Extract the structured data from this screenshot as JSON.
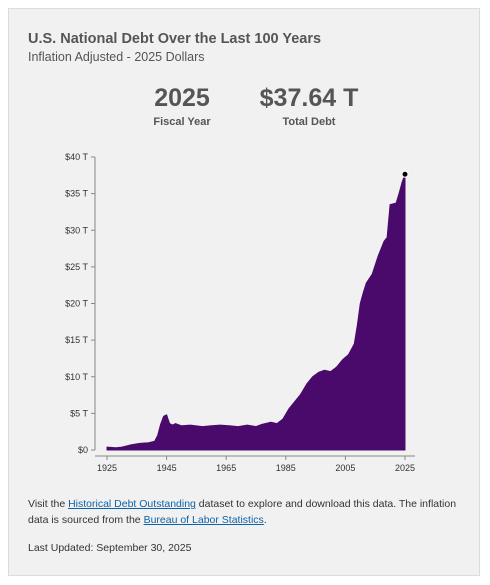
{
  "header": {
    "title": "U.S. National Debt Over the Last 100 Years",
    "subtitle": "Inflation Adjusted - 2025 Dollars"
  },
  "stats": {
    "year_value": "2025",
    "year_label": "Fiscal Year",
    "debt_value": "$37.64 T",
    "debt_label": "Total Debt"
  },
  "colors": {
    "area": "#4a0a6c",
    "marker": "#000000",
    "axis": "#888888"
  },
  "chart_data": {
    "type": "area",
    "title": "U.S. National Debt Over the Last 100 Years",
    "subtitle": "Inflation Adjusted - 2025 Dollars",
    "xlabel": "",
    "ylabel": "",
    "xlim": [
      1925,
      2025
    ],
    "ylim": [
      0,
      40
    ],
    "x_ticks": [
      1925,
      1945,
      1965,
      1985,
      2005,
      2025
    ],
    "x_tick_labels": [
      "1925",
      "1945",
      "1965",
      "1985",
      "2005",
      "2025"
    ],
    "y_ticks": [
      0,
      5,
      10,
      15,
      20,
      25,
      30,
      35,
      40
    ],
    "y_tick_labels": [
      "$0",
      "$5 T",
      "$10 T",
      "$15 T",
      "$20 T",
      "$25 T",
      "$30 T",
      "$35 T",
      "$40 T"
    ],
    "grid": false,
    "series": [
      {
        "x": [
          1925,
          1928,
          1930,
          1933,
          1936,
          1939,
          1941,
          1942,
          1943,
          1944,
          1945,
          1946,
          1947,
          1948,
          1950,
          1953,
          1957,
          1960,
          1963,
          1966,
          1969,
          1972,
          1975,
          1977,
          1980,
          1982,
          1984,
          1986,
          1988,
          1990,
          1992,
          1994,
          1996,
          1998,
          2000,
          2002,
          2004,
          2006,
          2008,
          2009,
          2010,
          2011,
          2012,
          2014,
          2016,
          2018,
          2019,
          2020,
          2021,
          2022,
          2023,
          2024,
          2025
        ],
        "y": [
          0.4,
          0.3,
          0.4,
          0.7,
          0.9,
          1.0,
          1.2,
          2.0,
          3.5,
          4.6,
          4.8,
          3.6,
          3.4,
          3.6,
          3.3,
          3.4,
          3.2,
          3.3,
          3.4,
          3.3,
          3.2,
          3.4,
          3.2,
          3.5,
          3.8,
          3.6,
          4.2,
          5.6,
          6.6,
          7.6,
          9.0,
          10.0,
          10.6,
          10.9,
          10.7,
          11.3,
          12.3,
          13.0,
          14.5,
          17.0,
          20.0,
          21.5,
          22.8,
          24.0,
          26.5,
          28.5,
          29.0,
          33.5,
          33.6,
          33.7,
          35.0,
          36.5,
          37.64
        ]
      }
    ],
    "marker": {
      "x": 2025,
      "y": 37.64
    }
  },
  "footer": {
    "text_1": "Visit the ",
    "link_1": "Historical Debt Outstanding",
    "text_2": " dataset to explore and download this data. The inflation data is sourced from the ",
    "link_2": "Bureau of Labor Statistics",
    "text_3": ".",
    "last_updated": "Last Updated: September 30, 2025"
  }
}
